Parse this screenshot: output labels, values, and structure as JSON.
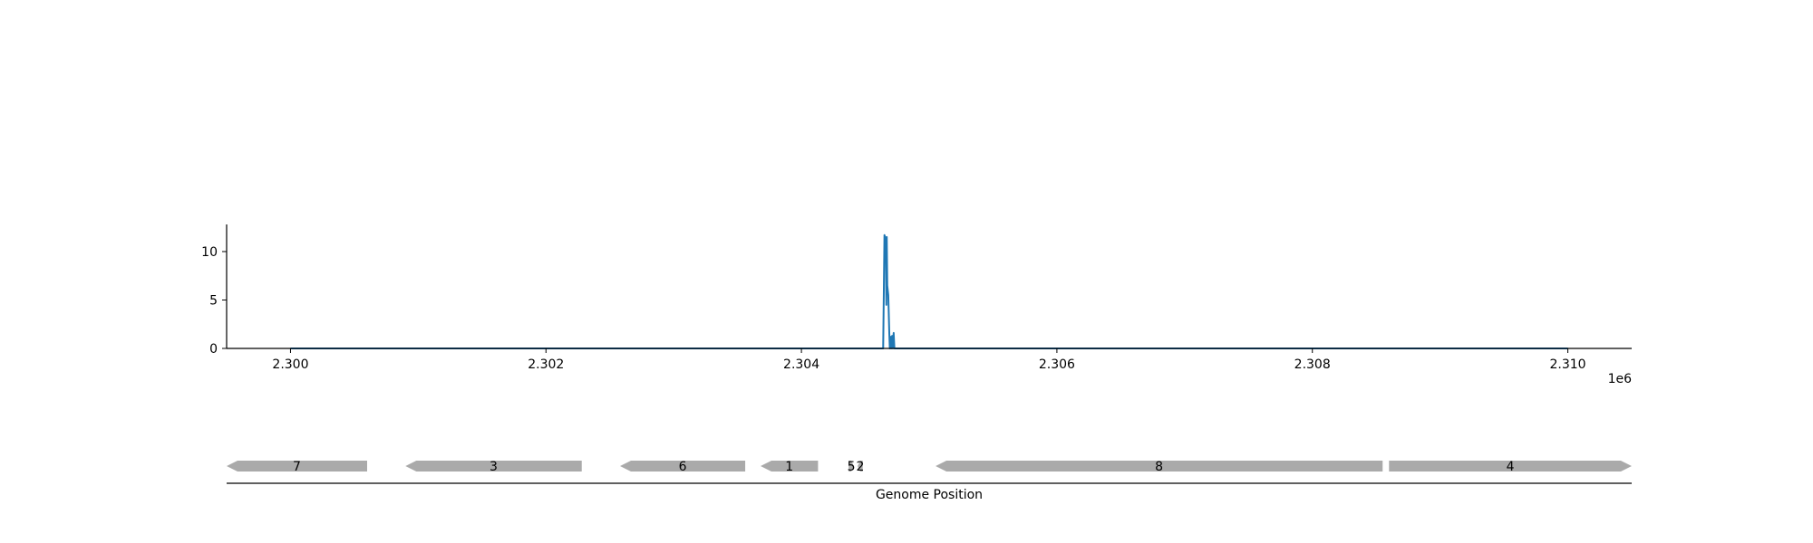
{
  "chart_data": [
    {
      "type": "line",
      "title": "",
      "xlabel": "",
      "ylabel": "",
      "x_offset_label": "1e6",
      "xlim": [
        2299500,
        2310500
      ],
      "ylim": [
        0,
        12.8
      ],
      "xticks": [
        {
          "value": 2300000,
          "label": "2.300"
        },
        {
          "value": 2302000,
          "label": "2.302"
        },
        {
          "value": 2304000,
          "label": "2.304"
        },
        {
          "value": 2306000,
          "label": "2.306"
        },
        {
          "value": 2308000,
          "label": "2.308"
        },
        {
          "value": 2310000,
          "label": "2.310"
        }
      ],
      "yticks": [
        {
          "value": 0,
          "label": "0"
        },
        {
          "value": 5,
          "label": "5"
        },
        {
          "value": 10,
          "label": "10"
        }
      ],
      "grid": false,
      "series": [
        {
          "color": "#1f77b4",
          "points": [
            [
              2300000,
              0
            ],
            [
              2304640,
              0
            ],
            [
              2304650,
              11.7
            ],
            [
              2304660,
              11.3
            ],
            [
              2304665,
              4.5
            ],
            [
              2304668,
              11.5
            ],
            [
              2304672,
              6.5
            ],
            [
              2304680,
              5.5
            ],
            [
              2304688,
              1.5
            ],
            [
              2304692,
              0
            ],
            [
              2304698,
              1.2
            ],
            [
              2304703,
              0
            ],
            [
              2304710,
              1.3
            ],
            [
              2304716,
              0
            ],
            [
              2304722,
              1.6
            ],
            [
              2304728,
              0
            ],
            [
              2310000,
              0
            ]
          ]
        }
      ]
    },
    {
      "type": "gene_track",
      "xlabel": "Genome Position",
      "xlim": [
        2299500,
        2310500
      ],
      "color": "#aaaaaa",
      "genes": [
        {
          "label": "7",
          "start": 2299500,
          "end": 2300600,
          "strand": "-"
        },
        {
          "label": "3",
          "start": 2300900,
          "end": 2302280,
          "strand": "-"
        },
        {
          "label": "6",
          "start": 2302580,
          "end": 2303560,
          "strand": "-"
        },
        {
          "label": "1",
          "start": 2303680,
          "end": 2304130,
          "strand": "-"
        },
        {
          "label": "5",
          "start": 2304370,
          "end": 2304410,
          "strand": "+"
        },
        {
          "label": "2",
          "start": 2304440,
          "end": 2304480,
          "strand": "-"
        },
        {
          "label": "8",
          "start": 2305050,
          "end": 2308550,
          "strand": "-"
        },
        {
          "label": "4",
          "start": 2308600,
          "end": 2310500,
          "strand": "+"
        }
      ]
    }
  ]
}
